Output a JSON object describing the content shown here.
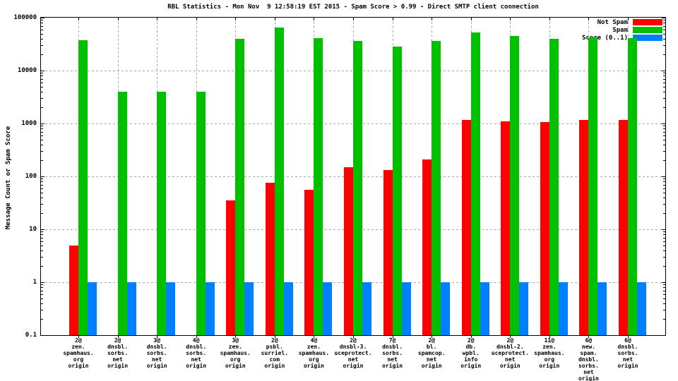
{
  "chart_data": {
    "type": "bar",
    "title": "RBL Statistics - Mon Nov  9 12:58:19 EST 2015 - Spam Score > 0.99 - Direct SMTP client connection",
    "ylabel": "Message Count or Spam Score",
    "yscale": "log10",
    "ylim": [
      0.1,
      100000
    ],
    "y_tick_labels": [
      "100000",
      "10000",
      "1000",
      "100",
      "10",
      "1",
      "0.1"
    ],
    "grid": "dashed horizontal and vertical",
    "legend_position": "top-right",
    "categories": [
      [
        "2@",
        "zen.",
        "spamhaus.",
        "org",
        "origin"
      ],
      [
        "2@",
        "dnsbl.",
        "sorbs.",
        "net",
        "origin"
      ],
      [
        "3@",
        "dnsbl.",
        "sorbs.",
        "net",
        "origin"
      ],
      [
        "4@",
        "dnsbl.",
        "sorbs.",
        "net",
        "origin"
      ],
      [
        "3@",
        "zen.",
        "spamhaus.",
        "org",
        "origin"
      ],
      [
        "2@",
        "psbl.",
        "surriel.",
        "com",
        "origin"
      ],
      [
        "4@",
        "zen.",
        "spamhaus.",
        "org",
        "origin"
      ],
      [
        "2@",
        "dnsbl-3.",
        "uceprotect.",
        "net",
        "origin"
      ],
      [
        "7@",
        "dnsbl.",
        "sorbs.",
        "net",
        "origin"
      ],
      [
        "2@",
        "bl.",
        "spamcop.",
        "net",
        "origin"
      ],
      [
        "2@",
        "db.",
        "wpbl.",
        "info",
        "origin"
      ],
      [
        "2@",
        "dnsbl-2.",
        "uceprotect.",
        "net",
        "origin"
      ],
      [
        "11@",
        "zen.",
        "spamhaus.",
        "org",
        "origin"
      ],
      [
        "6@",
        "new.",
        "spam.",
        "dnsbl.",
        "sorbs.",
        "net",
        "origin"
      ],
      [
        "6@",
        "dnsbl.",
        "sorbs.",
        "net",
        "origin"
      ]
    ],
    "series": [
      {
        "name": "Not Spam",
        "color": "#ff0000",
        "values": [
          5,
          null,
          null,
          null,
          35,
          75,
          55,
          150,
          130,
          210,
          1150,
          1100,
          1050,
          1150,
          1150
        ]
      },
      {
        "name": "Spam",
        "color": "#00c000",
        "values": [
          38000,
          4000,
          4000,
          4000,
          40000,
          65000,
          41000,
          36000,
          28000,
          36000,
          52000,
          45000,
          40000,
          42000,
          41000
        ]
      },
      {
        "name": "Score (0..1)",
        "color": "#0080ff",
        "values": [
          1,
          1,
          1,
          1,
          1,
          1,
          1,
          1,
          1,
          1,
          1,
          1,
          1,
          1,
          1
        ]
      }
    ]
  }
}
